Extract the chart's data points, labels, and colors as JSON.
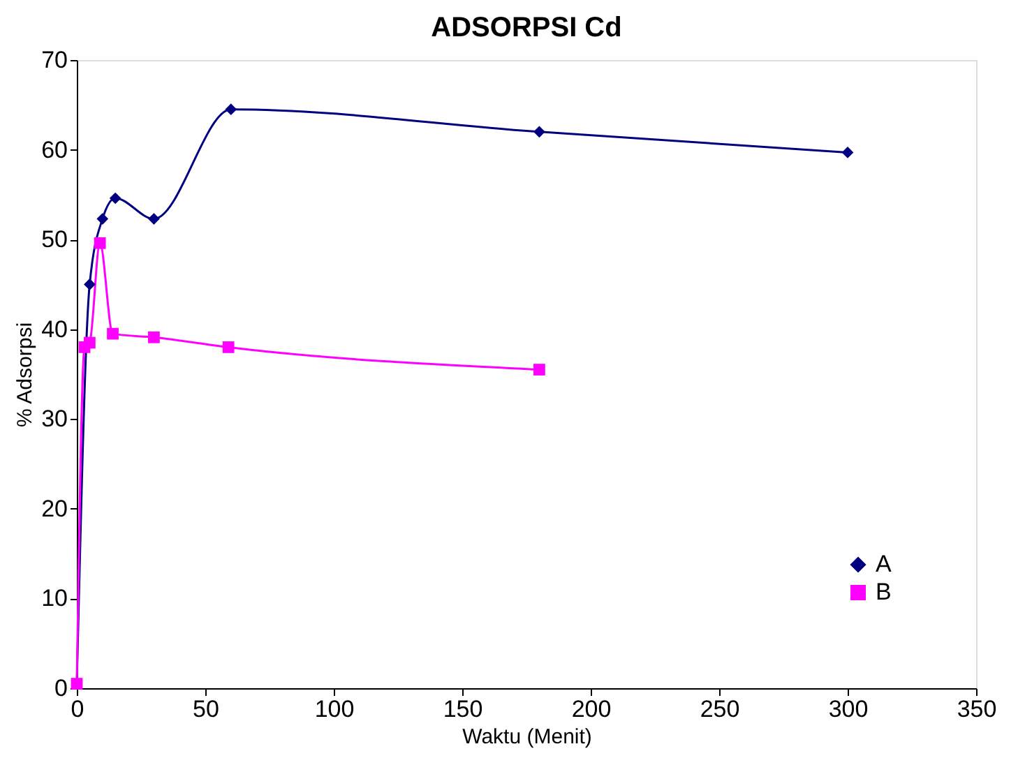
{
  "chart_data": {
    "type": "line",
    "title": "ADSORPSI Cd",
    "xlabel": "Waktu (Menit)",
    "ylabel": "% Adsorpsi",
    "xlim": [
      0,
      350
    ],
    "xticks": [
      0,
      50,
      100,
      150,
      200,
      250,
      300,
      350
    ],
    "ylim": [
      0,
      70
    ],
    "yticks": [
      0,
      10,
      20,
      30,
      40,
      50,
      60,
      70
    ],
    "grid": false,
    "legend": "bottom right",
    "series": [
      {
        "name": "A",
        "color": "#000080",
        "marker": "diamond",
        "x": [
          0,
          5,
          10,
          15,
          30,
          60,
          180,
          300
        ],
        "values": [
          0.5,
          45,
          52.3,
          54.6,
          52.3,
          64.5,
          62,
          59.7
        ]
      },
      {
        "name": "B",
        "color": "#ff00ff",
        "marker": "square",
        "x": [
          0,
          3,
          5,
          9,
          14,
          30,
          59,
          180
        ],
        "values": [
          0.5,
          38,
          38.5,
          49.6,
          39.5,
          39.1,
          38,
          35.5
        ]
      }
    ]
  }
}
